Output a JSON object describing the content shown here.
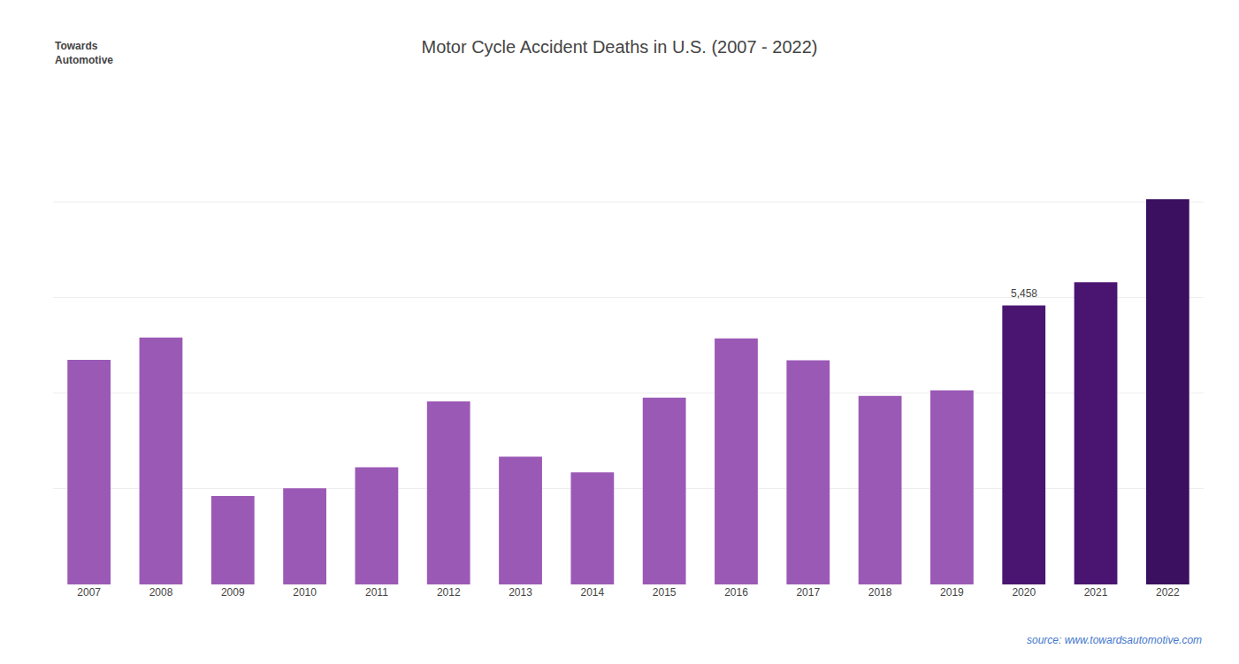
{
  "chart_data": {
    "type": "bar",
    "title": "Motor Cycle Accident Deaths in U.S. (2007 - 2022)",
    "categories": [
      "2007",
      "2008",
      "2009",
      "2010",
      "2011",
      "2012",
      "2013",
      "2014",
      "2015",
      "2016",
      "2017",
      "2018",
      "2019",
      "2020",
      "2021",
      "2022"
    ],
    "values": [
      5174,
      5290,
      4462,
      4502,
      4612,
      4957,
      4668,
      4586,
      4976,
      5286,
      5172,
      4985,
      5014,
      5458,
      5579,
      6014
    ],
    "colors": [
      "#9b59b6",
      "#9b59b6",
      "#9b59b6",
      "#9b59b6",
      "#9b59b6",
      "#9b59b6",
      "#9b59b6",
      "#9b59b6",
      "#9b59b6",
      "#9b59b6",
      "#9b59b6",
      "#9b59b6",
      "#9b59b6",
      "#4a1570",
      "#4a1570",
      "#3b1060"
    ],
    "ylim": [
      4000,
      6500
    ],
    "yticks": [
      4000,
      4500,
      5000,
      5500,
      6000,
      6500
    ],
    "grid": true,
    "tick_labels": "x",
    "annotations": [
      {
        "text": "5,458",
        "category": "2020",
        "value": 5458
      }
    ],
    "source": "source: www.towardsautomotive.com",
    "logo": "Towards\nAutomotive"
  }
}
